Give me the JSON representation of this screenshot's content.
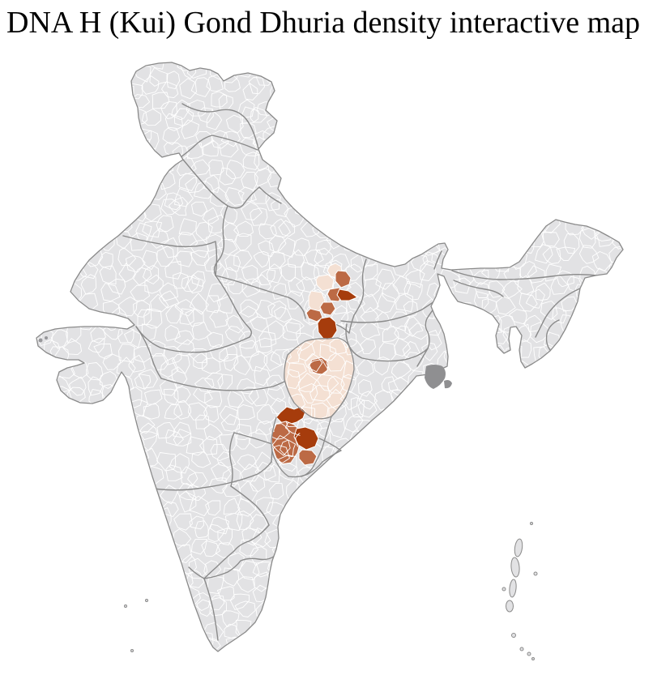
{
  "title": "DNA H (Kui) Gond Dhuria density interactive map",
  "map": {
    "kind": "choropleth-district-map",
    "colors": {
      "background": "#ffffff",
      "land": "#e2e2e4",
      "district_border": "#ffffff",
      "state_border": "#8a8a8a",
      "coast_border": "#8a8a8a",
      "delta_patch": "#8f8f91",
      "islet_dark": "#97979a"
    },
    "density_scale": {
      "low": "#f4e0d3",
      "medium": "#bc6a45",
      "high": "#a63c0c"
    },
    "highlighted_districts": [
      {
        "id": "d01",
        "cluster": "north",
        "level": "low"
      },
      {
        "id": "d02",
        "cluster": "north",
        "level": "medium"
      },
      {
        "id": "d03",
        "cluster": "north",
        "level": "low"
      },
      {
        "id": "d04",
        "cluster": "north",
        "level": "medium"
      },
      {
        "id": "d05",
        "cluster": "north",
        "level": "high"
      },
      {
        "id": "d06",
        "cluster": "north",
        "level": "low"
      },
      {
        "id": "d07",
        "cluster": "north",
        "level": "medium"
      },
      {
        "id": "d08",
        "cluster": "north",
        "level": "medium"
      },
      {
        "id": "d09",
        "cluster": "north",
        "level": "high"
      },
      {
        "id": "d10",
        "cluster": "central",
        "level": "low"
      },
      {
        "id": "d11",
        "cluster": "central",
        "level": "medium"
      },
      {
        "id": "d12",
        "cluster": "south",
        "level": "high"
      },
      {
        "id": "d13",
        "cluster": "south",
        "level": "medium"
      },
      {
        "id": "d14",
        "cluster": "south",
        "level": "high"
      },
      {
        "id": "d15",
        "cluster": "south",
        "level": "medium"
      }
    ]
  }
}
